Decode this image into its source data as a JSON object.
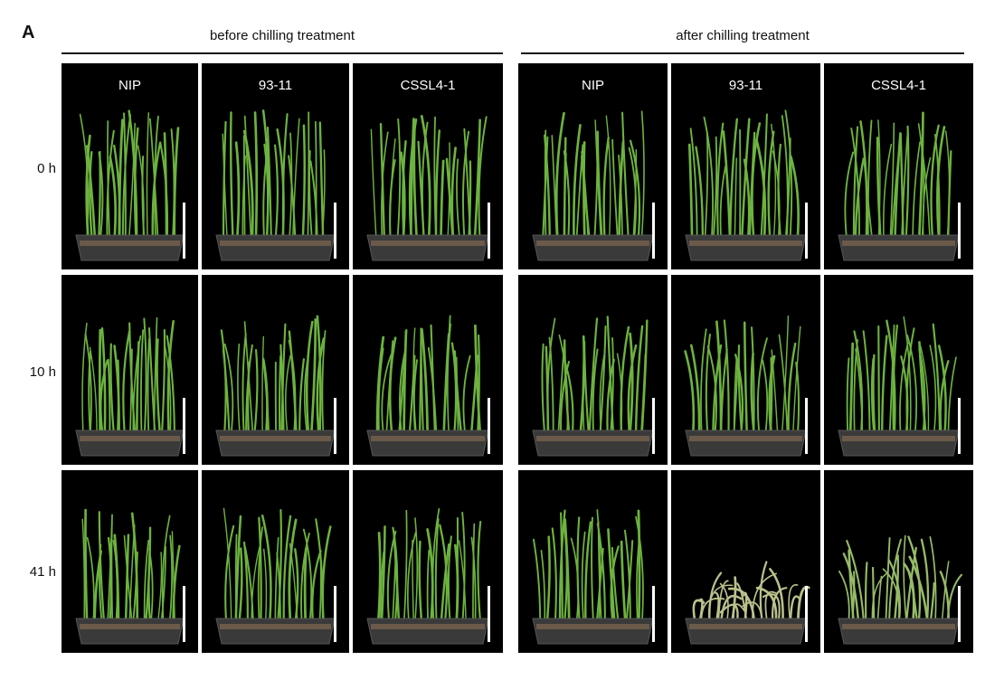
{
  "figure": {
    "panel_letter": "A",
    "groups": [
      {
        "title": "before chilling treatment"
      },
      {
        "title": "after chilling treatment"
      }
    ],
    "genotypes": [
      "NIP",
      "93-11",
      "CSSL4-1"
    ],
    "timepoints": [
      "0 h",
      "10 h",
      "41 h"
    ]
  },
  "colors": {
    "background": "#000000",
    "healthy_leaf": "#6db33f",
    "wilted_leaf": "#c9c49a",
    "pot": "#3a3a3a",
    "scale_bar": "#ffffff"
  },
  "plant_state": {
    "before": [
      [
        1,
        1,
        1
      ],
      [
        1,
        1,
        1
      ],
      [
        1,
        1,
        1
      ]
    ],
    "after": [
      [
        1,
        1,
        1
      ],
      [
        1,
        1,
        1
      ],
      [
        1,
        0.15,
        0.55
      ]
    ]
  }
}
